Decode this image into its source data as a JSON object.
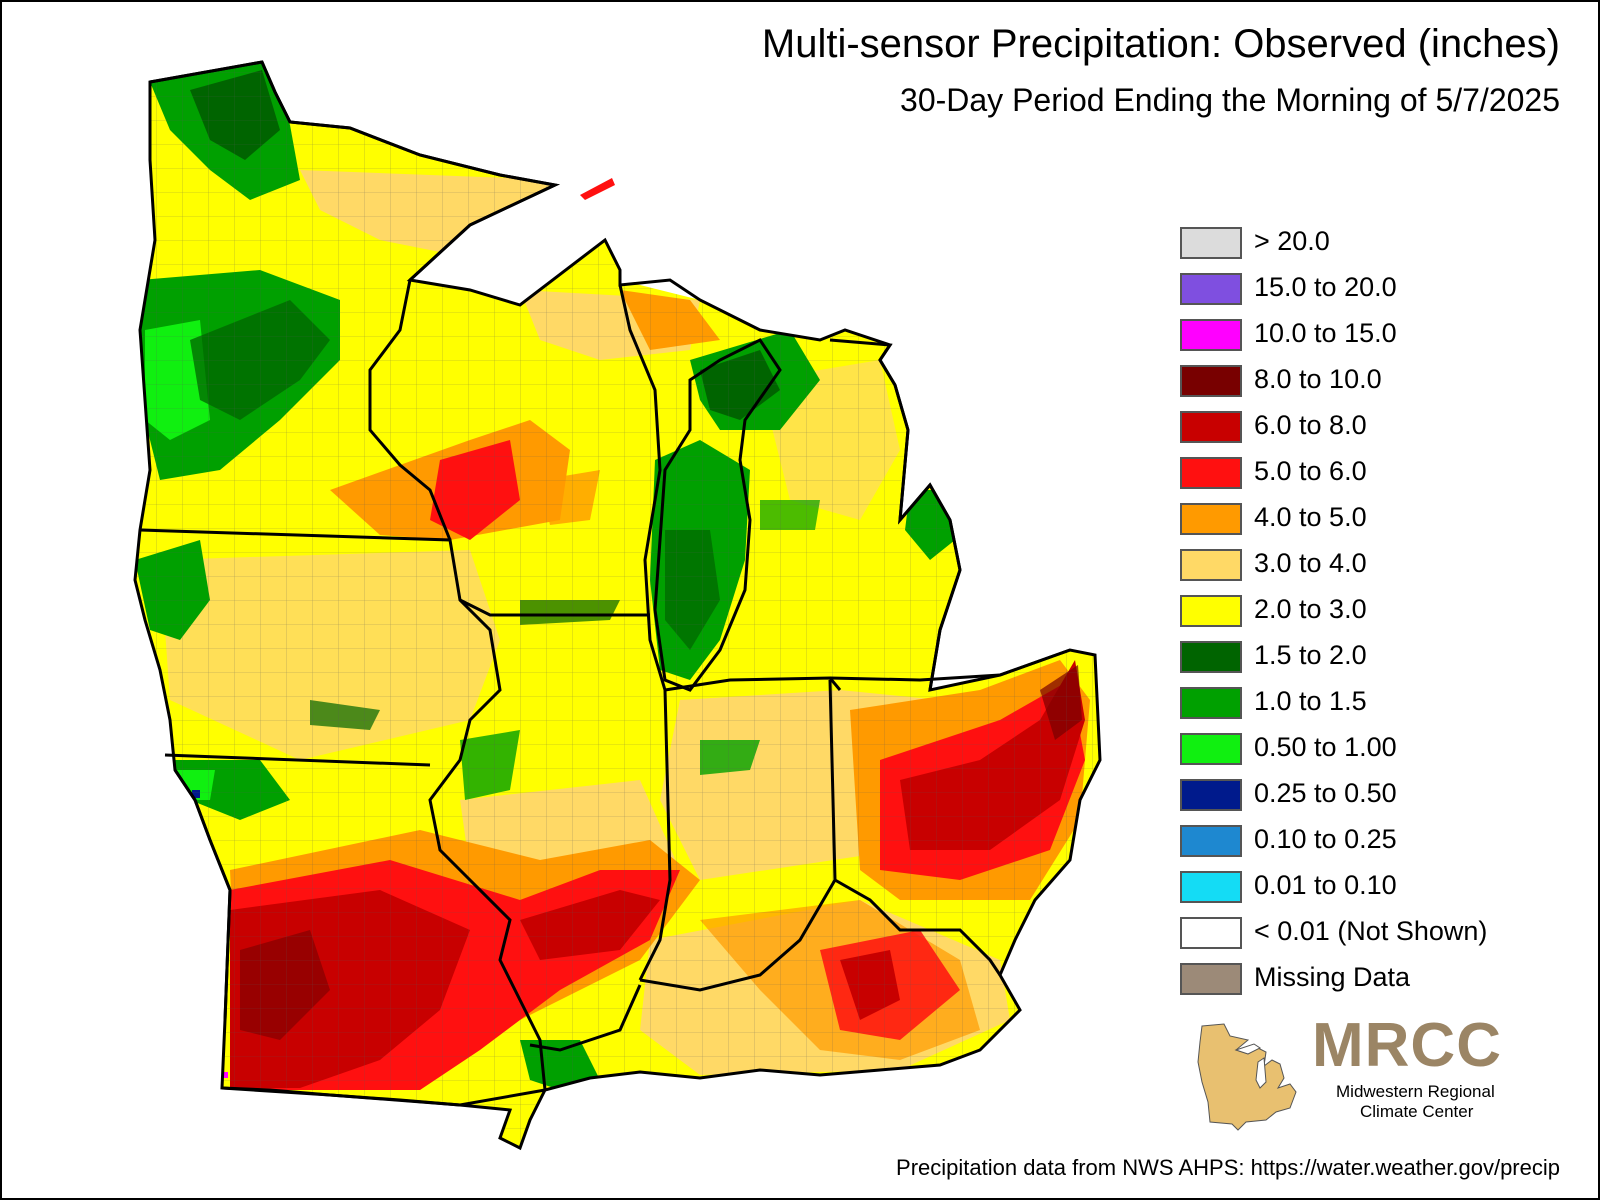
{
  "title": "Multi-sensor Precipitation: Observed (inches)",
  "subtitle": "30-Day Period Ending the Morning of 5/7/2025",
  "legend": [
    {
      "label": "> 20.0",
      "color": "#dcdcdc"
    },
    {
      "label": "15.0 to 20.0",
      "color": "#7f4fe0"
    },
    {
      "label": "10.0 to 15.0",
      "color": "#ff00ff"
    },
    {
      "label": "8.0 to 10.0",
      "color": "#780000"
    },
    {
      "label": "6.0 to 8.0",
      "color": "#c80000"
    },
    {
      "label": "5.0 to 6.0",
      "color": "#ff1010"
    },
    {
      "label": "4.0 to 5.0",
      "color": "#ff9a00"
    },
    {
      "label": "3.0 to 4.0",
      "color": "#ffd966"
    },
    {
      "label": "2.0 to 3.0",
      "color": "#ffff00"
    },
    {
      "label": "1.5 to 2.0",
      "color": "#006400"
    },
    {
      "label": "1.0 to 1.5",
      "color": "#00a000"
    },
    {
      "label": "0.50 to 1.00",
      "color": "#10f010"
    },
    {
      "label": "0.25 to 0.50",
      "color": "#001a8c"
    },
    {
      "label": "0.10 to 0.25",
      "color": "#1e88d0"
    },
    {
      "label": "0.01 to 0.10",
      "color": "#14dcf5"
    },
    {
      "label": "< 0.01 (Not Shown)",
      "color": "#ffffff"
    },
    {
      "label": "Missing Data",
      "color": "#9c8a78"
    }
  ],
  "logo": {
    "name": "MRCC",
    "line1": "Midwestern Regional",
    "line2": "Climate Center",
    "color": "#9b8565"
  },
  "source": "Precipitation data from NWS AHPS: https://water.weather.gov/precip",
  "map_icon": "midwest-precipitation-map"
}
